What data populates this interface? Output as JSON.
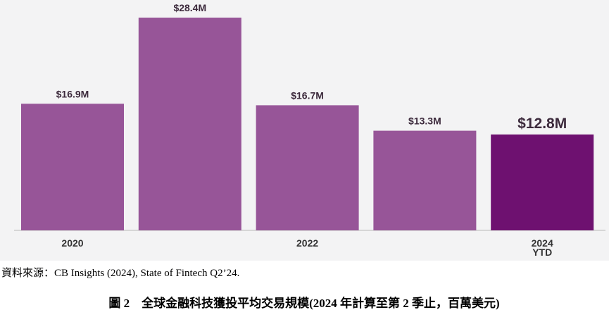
{
  "chart_data": {
    "type": "bar",
    "categories": [
      "2020",
      null,
      "2022",
      null,
      "2024\nYTD"
    ],
    "values": [
      16.9,
      28.4,
      16.7,
      13.3,
      12.8
    ],
    "value_labels": [
      "$16.9M",
      "$28.4M",
      "$16.7M",
      "$13.3M",
      "$12.8M"
    ],
    "colors": [
      "#975598",
      "#975598",
      "#975598",
      "#975598",
      "#6e1170"
    ],
    "source": "資料來源：CB Insights (2024), State of Fintech Q2’24.",
    "caption": "圖 2　全球金融科技獲投平均交易規模(2024 年計算至第 2 季止，百萬美元)"
  }
}
